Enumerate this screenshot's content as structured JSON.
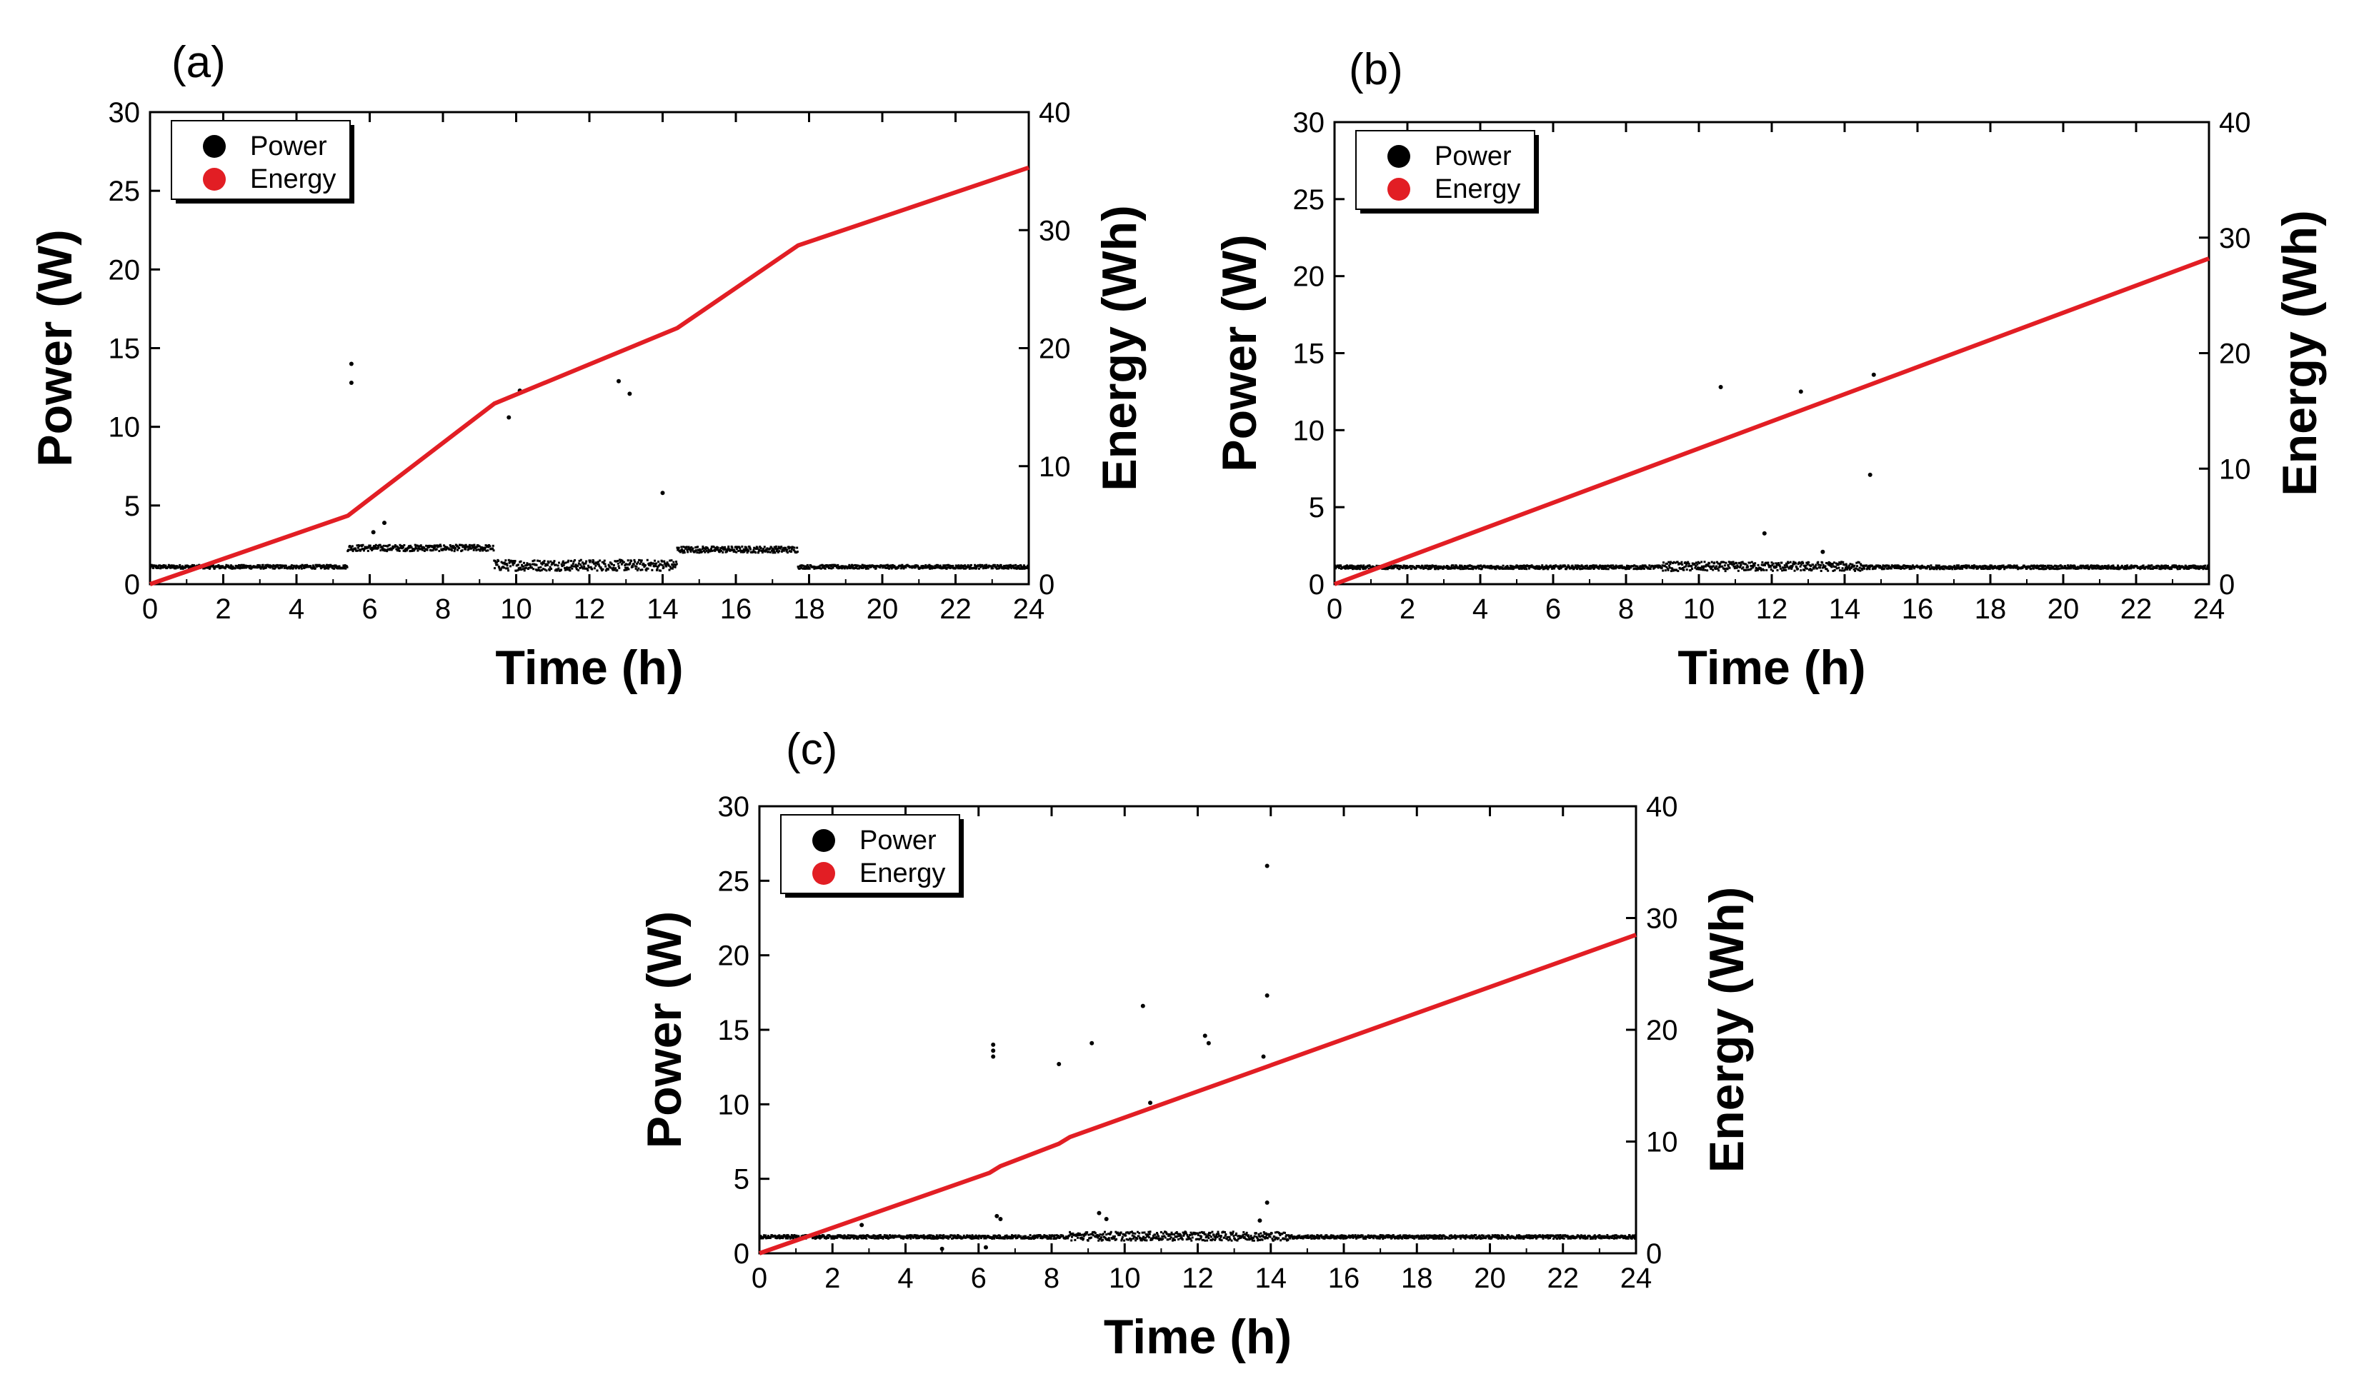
{
  "chart_data": [
    {
      "type": "scatter",
      "panel": "(a)",
      "xlabel": "Time (h)",
      "ylabel": "Power (W)",
      "y2label": "Energy (Wh)",
      "xlim": [
        0,
        24
      ],
      "ylim": [
        0,
        30
      ],
      "y2lim": [
        0,
        40
      ],
      "xticks": [
        0,
        2,
        4,
        6,
        8,
        10,
        12,
        14,
        16,
        18,
        20,
        22,
        24
      ],
      "yticks": [
        0,
        5,
        10,
        15,
        20,
        25,
        30
      ],
      "y2ticks": [
        0,
        10,
        20,
        30,
        40
      ],
      "legend": [
        "Power",
        "Energy"
      ],
      "series": [
        {
          "name": "Power",
          "color": "#000000",
          "axis": "left",
          "baseline": [
            {
              "from": 0,
              "to": 5.4,
              "level": 1.1,
              "spread": 0.12
            },
            {
              "from": 5.4,
              "to": 9.4,
              "level": 2.3,
              "spread": 0.2
            },
            {
              "from": 9.4,
              "to": 14.4,
              "level": 1.2,
              "spread": 0.35
            },
            {
              "from": 14.4,
              "to": 17.7,
              "level": 2.2,
              "spread": 0.2
            },
            {
              "from": 17.7,
              "to": 24,
              "level": 1.1,
              "spread": 0.12
            }
          ],
          "outliers": [
            [
              5.5,
              14.0
            ],
            [
              5.5,
              12.8
            ],
            [
              10.1,
              12.3
            ],
            [
              9.8,
              10.6
            ],
            [
              12.8,
              12.9
            ],
            [
              13.1,
              12.1
            ],
            [
              14.0,
              5.8
            ],
            [
              6.4,
              3.9
            ],
            [
              6.1,
              3.3
            ]
          ]
        },
        {
          "name": "Energy",
          "color": "#e21e24",
          "axis": "right",
          "x": [
            0,
            5.4,
            9.4,
            14.4,
            17.7,
            24
          ],
          "y": [
            0,
            5.8,
            15.3,
            21.7,
            28.7,
            35.3
          ]
        }
      ]
    },
    {
      "type": "scatter",
      "panel": "(b)",
      "xlabel": "Time (h)",
      "ylabel": "Power (W)",
      "y2label": "Energy (Wh)",
      "xlim": [
        0,
        24
      ],
      "ylim": [
        0,
        30
      ],
      "y2lim": [
        0,
        40
      ],
      "xticks": [
        0,
        2,
        4,
        6,
        8,
        10,
        12,
        14,
        16,
        18,
        20,
        22,
        24
      ],
      "yticks": [
        0,
        5,
        10,
        15,
        20,
        25,
        30
      ],
      "y2ticks": [
        0,
        10,
        20,
        30,
        40
      ],
      "legend": [
        "Power",
        "Energy"
      ],
      "series": [
        {
          "name": "Power",
          "color": "#000000",
          "axis": "left",
          "baseline": [
            {
              "from": 0,
              "to": 9.0,
              "level": 1.1,
              "spread": 0.12
            },
            {
              "from": 9.0,
              "to": 14.5,
              "level": 1.15,
              "spread": 0.3
            },
            {
              "from": 14.5,
              "to": 24,
              "level": 1.1,
              "spread": 0.12
            }
          ],
          "outliers": [
            [
              10.6,
              12.8
            ],
            [
              12.8,
              12.5
            ],
            [
              14.8,
              13.6
            ],
            [
              14.7,
              7.1
            ],
            [
              11.8,
              3.3
            ],
            [
              13.4,
              2.1
            ]
          ]
        },
        {
          "name": "Energy",
          "color": "#e21e24",
          "axis": "right",
          "x": [
            0,
            24
          ],
          "y": [
            0,
            28.2
          ]
        }
      ]
    },
    {
      "type": "scatter",
      "panel": "(c)",
      "xlabel": "Time (h)",
      "ylabel": "Power (W)",
      "y2label": "Energy (Wh)",
      "xlim": [
        0,
        24
      ],
      "ylim": [
        0,
        30
      ],
      "y2lim": [
        0,
        40
      ],
      "xticks": [
        0,
        2,
        4,
        6,
        8,
        10,
        12,
        14,
        16,
        18,
        20,
        22,
        24
      ],
      "yticks": [
        0,
        5,
        10,
        15,
        20,
        25,
        30
      ],
      "y2ticks": [
        0,
        10,
        20,
        30,
        40
      ],
      "legend": [
        "Power",
        "Energy"
      ],
      "series": [
        {
          "name": "Power",
          "color": "#000000",
          "axis": "left",
          "baseline": [
            {
              "from": 0,
              "to": 8.5,
              "level": 1.1,
              "spread": 0.12
            },
            {
              "from": 8.5,
              "to": 14.5,
              "level": 1.15,
              "spread": 0.3
            },
            {
              "from": 14.5,
              "to": 24,
              "level": 1.1,
              "spread": 0.12
            }
          ],
          "outliers": [
            [
              13.9,
              26.0
            ],
            [
              13.9,
              17.3
            ],
            [
              10.5,
              16.6
            ],
            [
              6.4,
              14.0
            ],
            [
              6.4,
              13.6
            ],
            [
              6.4,
              13.2
            ],
            [
              9.1,
              14.1
            ],
            [
              12.2,
              14.6
            ],
            [
              12.3,
              14.1
            ],
            [
              8.2,
              12.7
            ],
            [
              10.7,
              10.1
            ],
            [
              13.8,
              13.2
            ],
            [
              6.5,
              2.5
            ],
            [
              6.6,
              2.3
            ],
            [
              9.3,
              2.7
            ],
            [
              9.5,
              2.3
            ],
            [
              13.9,
              3.4
            ],
            [
              13.7,
              2.2
            ],
            [
              2.8,
              1.9
            ],
            [
              6.2,
              0.4
            ],
            [
              5.0,
              0.3
            ]
          ]
        },
        {
          "name": "Energy",
          "color": "#e21e24",
          "axis": "right",
          "x": [
            0,
            6.3,
            6.6,
            8.2,
            8.5,
            24
          ],
          "y": [
            0,
            7.2,
            7.8,
            9.8,
            10.4,
            28.5
          ]
        }
      ]
    }
  ]
}
